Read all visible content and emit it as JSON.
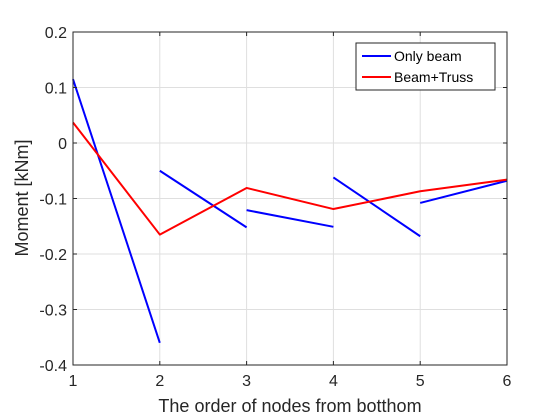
{
  "chart_data": {
    "type": "line",
    "xlabel": "The order of nodes from botthom",
    "ylabel": "Moment [kNm]",
    "xlim": [
      1,
      6
    ],
    "ylim": [
      -0.4,
      0.2
    ],
    "xticks": [
      "1",
      "2",
      "3",
      "4",
      "5",
      "6"
    ],
    "yticks": [
      "0.2",
      "0.1",
      "0",
      "-0.1",
      "-0.2",
      "-0.3",
      "-0.4"
    ],
    "grid": true,
    "legend_position": "top-right",
    "series": [
      {
        "name": "Only beam",
        "color": "#0000ff",
        "segments": [
          [
            [
              1,
              0.115
            ],
            [
              2,
              -0.36
            ]
          ],
          [
            [
              2,
              -0.05
            ],
            [
              3,
              -0.152
            ]
          ],
          [
            [
              3,
              -0.121
            ],
            [
              4,
              -0.151
            ]
          ],
          [
            [
              4,
              -0.062
            ],
            [
              5,
              -0.168
            ]
          ],
          [
            [
              5,
              -0.108
            ],
            [
              6,
              -0.068
            ]
          ]
        ]
      },
      {
        "name": "Beam+Truss",
        "color": "#ff0000",
        "segments": [
          [
            [
              1,
              0.037
            ],
            [
              2,
              -0.165
            ],
            [
              3,
              -0.081
            ],
            [
              4,
              -0.119
            ],
            [
              5,
              -0.087
            ],
            [
              6,
              -0.066
            ]
          ]
        ]
      }
    ]
  }
}
